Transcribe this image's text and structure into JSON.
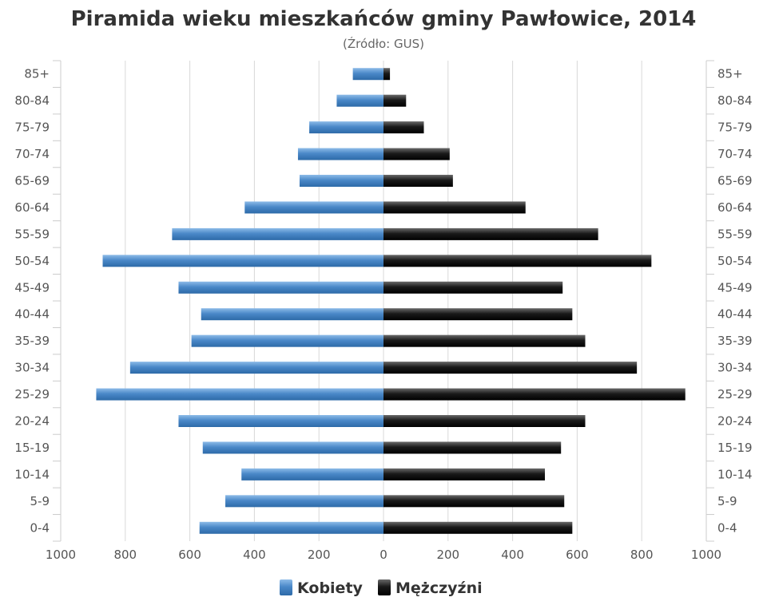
{
  "chart_data": {
    "type": "bar",
    "orientation": "horizontal",
    "layout": "population-pyramid",
    "title": "Piramida wieku mieszkańców gminy Pawłowice, 2014",
    "subtitle": "(Źródło: GUS)",
    "categories": [
      "0-4",
      "5-9",
      "10-14",
      "15-19",
      "20-24",
      "25-29",
      "30-34",
      "35-39",
      "40-44",
      "45-49",
      "50-54",
      "55-59",
      "60-64",
      "65-69",
      "70-74",
      "75-79",
      "80-84",
      "85+"
    ],
    "series": [
      {
        "name": "Kobiety",
        "side": "left",
        "color": "#4a88c8",
        "values": [
          570,
          490,
          440,
          560,
          635,
          890,
          785,
          595,
          565,
          635,
          870,
          655,
          430,
          260,
          265,
          230,
          145,
          95
        ]
      },
      {
        "name": "Mężczyźni",
        "side": "right",
        "color": "#1a1a1a",
        "values": [
          585,
          560,
          500,
          550,
          625,
          935,
          785,
          625,
          585,
          555,
          830,
          665,
          440,
          215,
          205,
          125,
          70,
          20
        ]
      }
    ],
    "xlim": [
      -1000,
      1000
    ],
    "x_ticks": [
      "1000",
      "800",
      "600",
      "400",
      "200",
      "0",
      "200",
      "400",
      "600",
      "800",
      "1000"
    ],
    "grid": true,
    "legend_position": "bottom"
  }
}
